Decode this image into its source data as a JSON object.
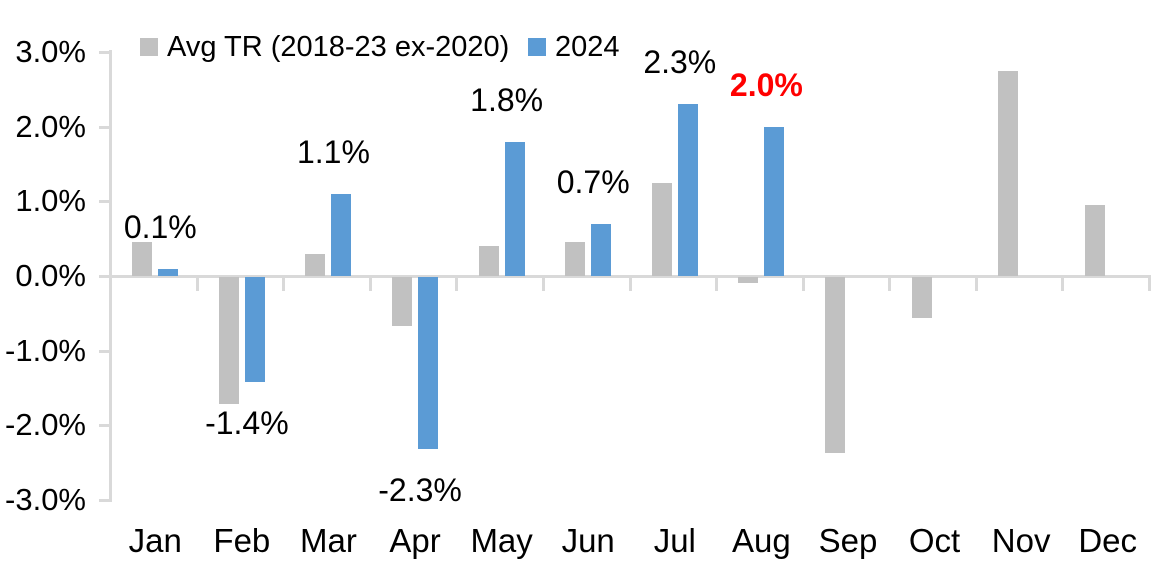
{
  "chart_data": {
    "type": "bar",
    "title": "",
    "categories": [
      "Jan",
      "Feb",
      "Mar",
      "Apr",
      "May",
      "Jun",
      "Jul",
      "Aug",
      "Sep",
      "Oct",
      "Nov",
      "Dec"
    ],
    "series": [
      {
        "name": "Avg TR (2018-23 ex-2020)",
        "color": "#C1C1C1",
        "values": [
          0.45,
          -1.7,
          0.3,
          -0.65,
          0.4,
          0.45,
          1.25,
          -0.08,
          -2.35,
          -0.55,
          2.75,
          0.95
        ]
      },
      {
        "name": "2024",
        "color": "#5B9BD5",
        "values": [
          0.1,
          -1.4,
          1.1,
          -2.3,
          1.8,
          0.7,
          2.3,
          2.0,
          null,
          null,
          null,
          null
        ]
      }
    ],
    "data_labels": [
      {
        "category": "Jan",
        "text": "0.1%",
        "color": "#000000",
        "bold": false
      },
      {
        "category": "Feb",
        "text": "-1.4%",
        "color": "#000000",
        "bold": false
      },
      {
        "category": "Mar",
        "text": "1.1%",
        "color": "#000000",
        "bold": false
      },
      {
        "category": "Apr",
        "text": "-2.3%",
        "color": "#000000",
        "bold": false
      },
      {
        "category": "May",
        "text": "1.8%",
        "color": "#000000",
        "bold": false
      },
      {
        "category": "Jun",
        "text": "0.7%",
        "color": "#000000",
        "bold": false
      },
      {
        "category": "Jul",
        "text": "2.3%",
        "color": "#000000",
        "bold": false
      },
      {
        "category": "Aug",
        "text": "2.0%",
        "color": "#FF0000",
        "bold": true
      }
    ],
    "y_axis": {
      "min": -3.0,
      "max": 3.0,
      "step": 1.0,
      "tick_labels": [
        "3.0%",
        "2.0%",
        "1.0%",
        "0.0%",
        "-1.0%",
        "-2.0%",
        "-3.0%"
      ]
    },
    "legend_position": "top",
    "grid": false,
    "axis_color": "#D9D9D9",
    "text_color": "#000000",
    "background_color": "#FFFFFF"
  }
}
